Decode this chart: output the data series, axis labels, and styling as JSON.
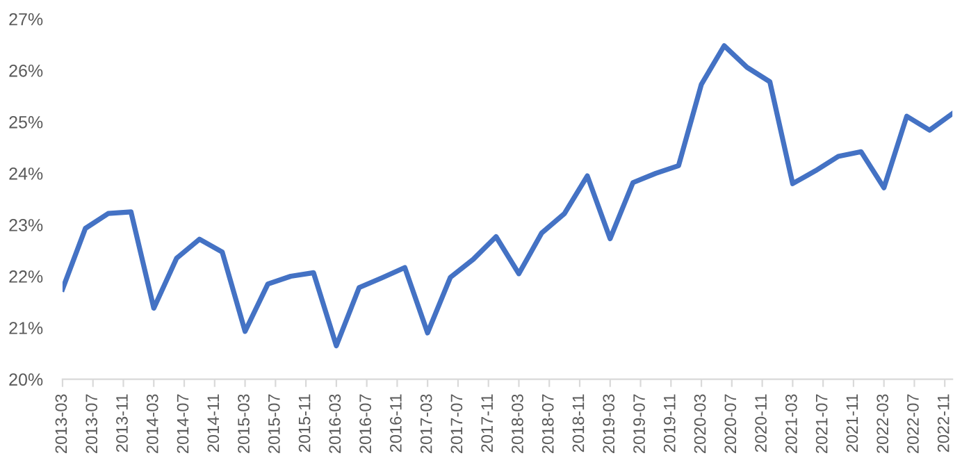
{
  "chart_data": {
    "type": "line",
    "x": [
      "2013-03",
      "2013-06",
      "2013-09",
      "2013-12",
      "2014-03",
      "2014-06",
      "2014-09",
      "2014-12",
      "2015-03",
      "2015-06",
      "2015-09",
      "2015-12",
      "2016-03",
      "2016-06",
      "2016-09",
      "2016-12",
      "2017-03",
      "2017-06",
      "2017-09",
      "2017-12",
      "2018-03",
      "2018-06",
      "2018-09",
      "2018-12",
      "2019-03",
      "2019-06",
      "2019-09",
      "2019-12",
      "2020-03",
      "2020-06",
      "2020-09",
      "2020-12",
      "2021-03",
      "2021-06",
      "2021-09",
      "2021-12",
      "2022-03",
      "2022-06",
      "2022-09",
      "2022-12"
    ],
    "series": [
      {
        "color": "#4472c4",
        "values": [
          21.75,
          22.93,
          23.22,
          23.25,
          21.38,
          22.35,
          22.72,
          22.47,
          20.93,
          21.85,
          22.0,
          22.07,
          20.65,
          21.78,
          21.97,
          22.17,
          20.9,
          21.98,
          22.33,
          22.77,
          22.05,
          22.84,
          23.22,
          23.95,
          22.73,
          23.82,
          24.0,
          24.15,
          25.73,
          26.48,
          26.06,
          25.78,
          23.8,
          24.05,
          24.33,
          24.42,
          23.72,
          25.11,
          24.84,
          25.16
        ]
      }
    ],
    "xlim": [
      "2013-03",
      "2022-12"
    ],
    "xticks": [
      "2013-03",
      "2013-07",
      "2013-11",
      "2014-03",
      "2014-07",
      "2014-11",
      "2015-03",
      "2015-07",
      "2015-11",
      "2016-03",
      "2016-07",
      "2016-11",
      "2017-03",
      "2017-07",
      "2017-11",
      "2018-03",
      "2018-07",
      "2018-11",
      "2019-03",
      "2019-07",
      "2019-11",
      "2020-03",
      "2020-07",
      "2020-11",
      "2021-03",
      "2021-07",
      "2021-11",
      "2022-03",
      "2022-07",
      "2022-11"
    ],
    "ylim": [
      20,
      27
    ],
    "yticks": [
      {
        "value": 20,
        "label": "20%"
      },
      {
        "value": 21,
        "label": "21%"
      },
      {
        "value": 22,
        "label": "22%"
      },
      {
        "value": 23,
        "label": "23%"
      },
      {
        "value": 24,
        "label": "24%"
      },
      {
        "value": 25,
        "label": "25%"
      },
      {
        "value": 26,
        "label": "26%"
      },
      {
        "value": 27,
        "label": "27%"
      }
    ],
    "grid": false,
    "legend": false,
    "marker": "none",
    "line_style": "solid"
  }
}
